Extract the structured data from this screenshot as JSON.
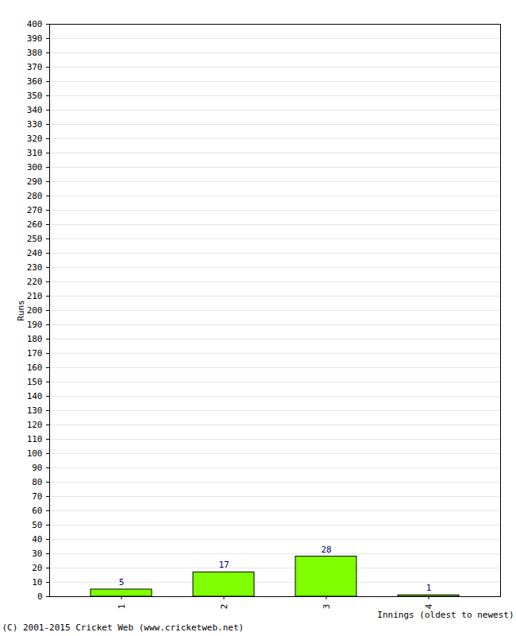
{
  "chart_data": {
    "type": "bar",
    "categories": [
      "1",
      "2",
      "3",
      "4"
    ],
    "values": [
      5,
      17,
      28,
      1
    ],
    "color": "#7fff00",
    "xlabel": "Innings (oldest to newest)",
    "ylabel": "Runs",
    "caption": "(C) 2001-2015 Cricket Web (www.cricketweb.net)",
    "ylim": [
      0,
      400
    ],
    "yticks": [
      0,
      10,
      20,
      30,
      40,
      50,
      60,
      70,
      80,
      90,
      100,
      110,
      120,
      130,
      140,
      150,
      160,
      170,
      180,
      190,
      200,
      210,
      220,
      230,
      240,
      250,
      260,
      270,
      280,
      290,
      300,
      310,
      320,
      330,
      340,
      350,
      360,
      370,
      380,
      390,
      400
    ],
    "grid": true,
    "data_labels": true
  }
}
